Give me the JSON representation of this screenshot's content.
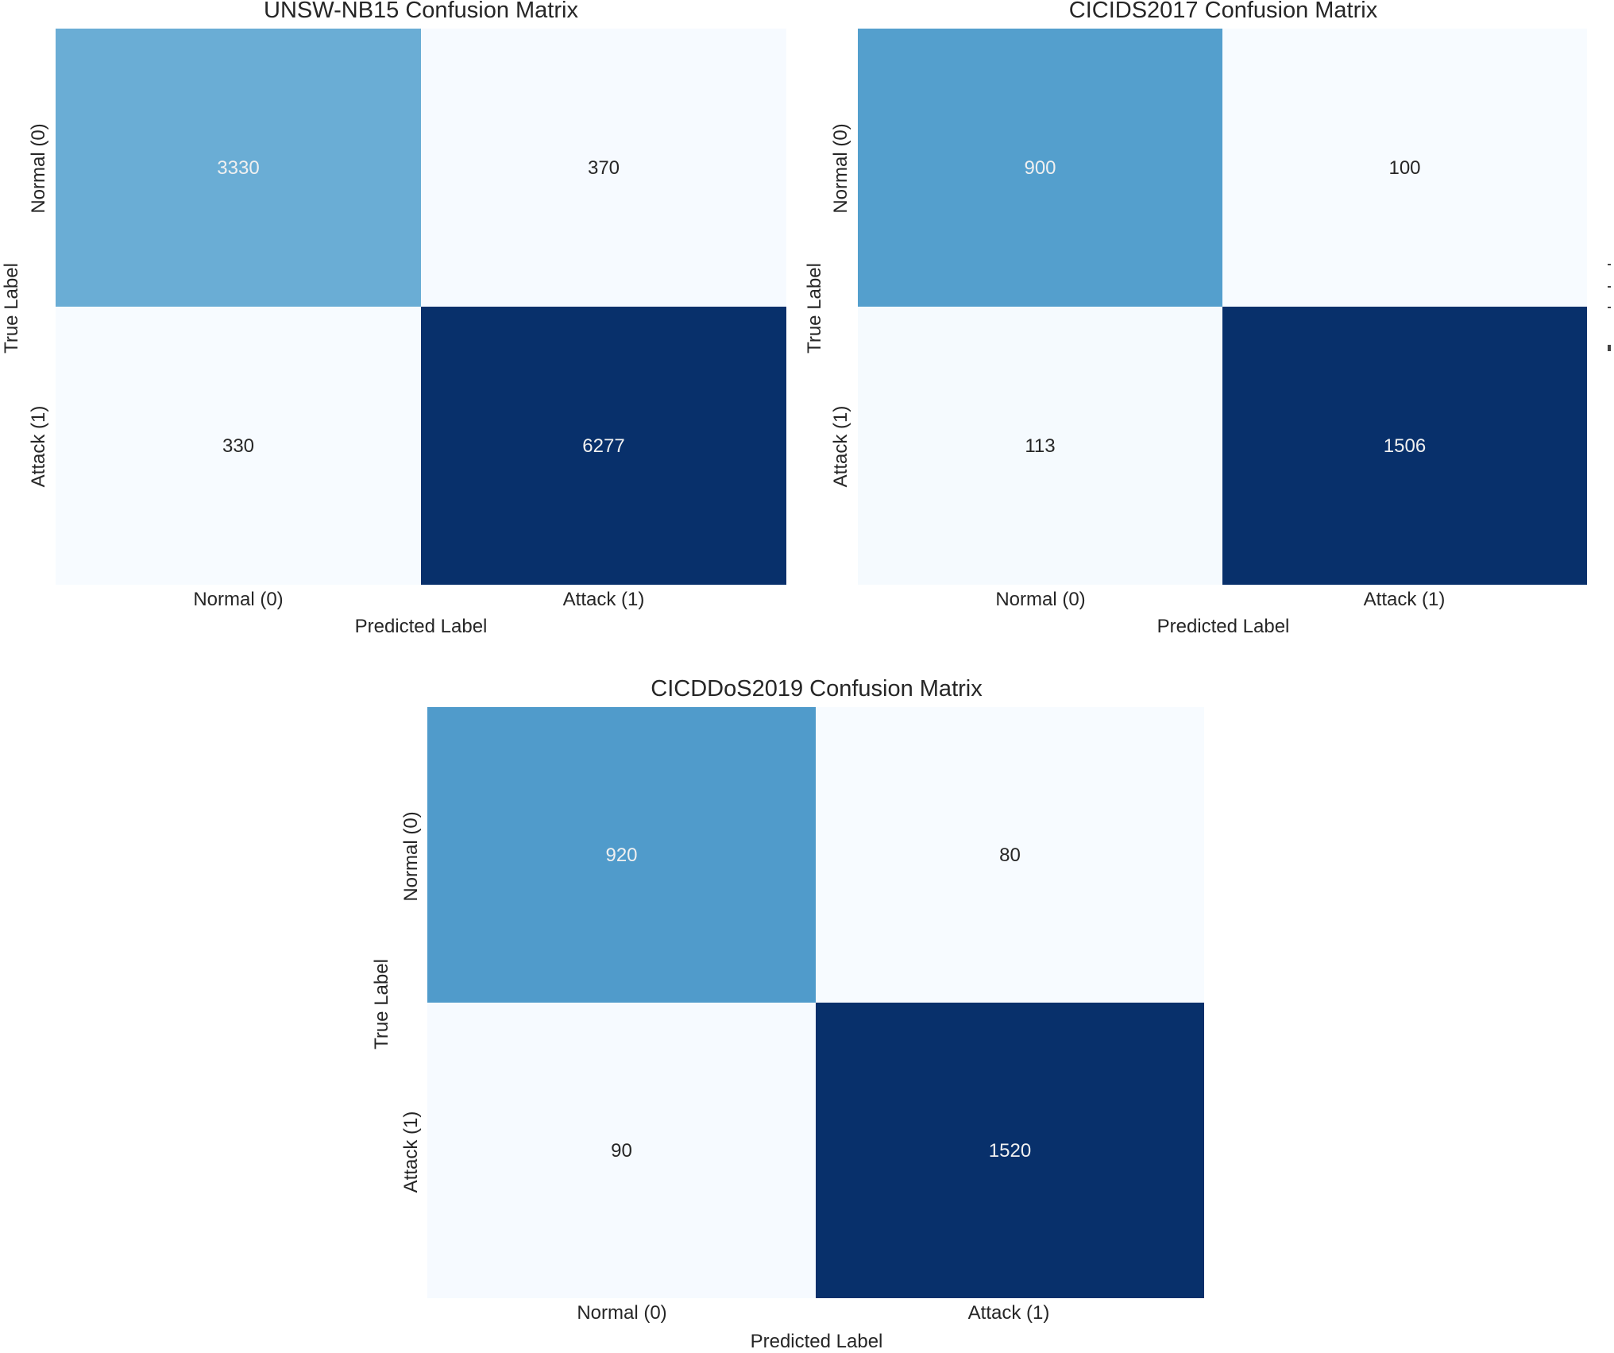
{
  "chart_data": [
    {
      "type": "heatmap",
      "title": "UNSW-NB15 Confusion Matrix",
      "xlabel": "Predicted Label",
      "ylabel": "True Label",
      "x_ticklabels": [
        "Normal (0)",
        "Attack (1)"
      ],
      "y_ticklabels": [
        "Normal (0)",
        "Attack (1)"
      ],
      "matrix": [
        [
          3330,
          370
        ],
        [
          330,
          6277
        ]
      ],
      "colormap": "Blues",
      "colorbar": false
    },
    {
      "type": "heatmap",
      "title": "CICIDS2017 Confusion Matrix",
      "xlabel": "Predicted Label",
      "ylabel": "True Label",
      "x_ticklabels": [
        "Normal (0)",
        "Attack (1)"
      ],
      "y_ticklabels": [
        "Normal (0)",
        "Attack (1)"
      ],
      "matrix": [
        [
          900,
          100
        ],
        [
          113,
          1506
        ]
      ],
      "colormap": "Blues",
      "colorbar": false
    },
    {
      "type": "heatmap",
      "title": "CICDDoS2019 Confusion Matrix",
      "xlabel": "Predicted Label",
      "ylabel": "True Label",
      "x_ticklabels": [
        "Normal (0)",
        "Attack (1)"
      ],
      "y_ticklabels": [
        "Normal (0)",
        "Attack (1)"
      ],
      "matrix": [
        [
          920,
          80
        ],
        [
          90,
          1520
        ]
      ],
      "colormap": "Blues",
      "colorbar": false
    }
  ],
  "colors": {
    "blues_ramp": [
      "#f7fbff",
      "#deebf7",
      "#c6dbef",
      "#9ecae1",
      "#6baed6",
      "#4292c6",
      "#2171b5",
      "#08519c",
      "#08306b"
    ],
    "text_dark": "#262626",
    "text_light": "#f0f0f0"
  }
}
